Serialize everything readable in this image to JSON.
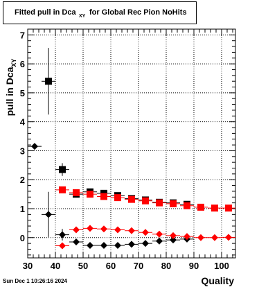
{
  "title": {
    "main": "Fitted pull in Dca",
    "subscript": "XY",
    "tail": "for Global Rec Pion NoHits"
  },
  "timestamp": "Sun Dec  1 10:26:16 2024",
  "chart_data": {
    "type": "scatter",
    "xlabel": "Quality",
    "ylabel": "pull in Dca",
    "ylabel_subscript": "XY",
    "xlim": [
      30,
      105
    ],
    "ylim": [
      -0.7,
      7.2
    ],
    "xticks": [
      30,
      40,
      50,
      60,
      70,
      80,
      90,
      100
    ],
    "yticks": [
      0,
      1,
      2,
      3,
      4,
      5,
      6,
      7
    ],
    "grid": true,
    "series": [
      {
        "color": "#000000",
        "marker": "square",
        "points": [
          {
            "x": 37.5,
            "y": 5.4,
            "yerr": 1.15
          },
          {
            "x": 42.5,
            "y": 2.35,
            "yerr": 0.22
          },
          {
            "x": 47.5,
            "y": 1.5,
            "yerr": 0.05
          },
          {
            "x": 52.5,
            "y": 1.58,
            "yerr": 0.04
          },
          {
            "x": 57.5,
            "y": 1.53,
            "yerr": 0.04
          },
          {
            "x": 62.5,
            "y": 1.45,
            "yerr": 0.04
          },
          {
            "x": 67.5,
            "y": 1.35,
            "yerr": 0.04
          },
          {
            "x": 72.5,
            "y": 1.3,
            "yerr": 0.04
          },
          {
            "x": 77.5,
            "y": 1.22,
            "yerr": 0.04
          },
          {
            "x": 82.5,
            "y": 1.2,
            "yerr": 0.04
          },
          {
            "x": 87.5,
            "y": 1.15,
            "yerr": 0.04
          }
        ]
      },
      {
        "color": "#ff0000",
        "marker": "square",
        "points": [
          {
            "x": 42.5,
            "y": 1.65,
            "yerr": 0.08
          },
          {
            "x": 47.5,
            "y": 1.55,
            "yerr": 0.05
          },
          {
            "x": 52.5,
            "y": 1.5,
            "yerr": 0.04
          },
          {
            "x": 57.5,
            "y": 1.42,
            "yerr": 0.04
          },
          {
            "x": 62.5,
            "y": 1.38,
            "yerr": 0.04
          },
          {
            "x": 67.5,
            "y": 1.32,
            "yerr": 0.04
          },
          {
            "x": 72.5,
            "y": 1.27,
            "yerr": 0.04
          },
          {
            "x": 77.5,
            "y": 1.2,
            "yerr": 0.04
          },
          {
            "x": 82.5,
            "y": 1.17,
            "yerr": 0.04
          },
          {
            "x": 87.5,
            "y": 1.1,
            "yerr": 0.04
          },
          {
            "x": 92.5,
            "y": 1.05,
            "yerr": 0.03
          },
          {
            "x": 97.5,
            "y": 1.02,
            "yerr": 0.03
          },
          {
            "x": 102.5,
            "y": 1.02,
            "yerr": 0.03
          }
        ]
      },
      {
        "color": "#000000",
        "marker": "diamond",
        "points": [
          {
            "x": 32.5,
            "y": 3.15,
            "yerr": 0.05
          },
          {
            "x": 37.5,
            "y": 0.8,
            "yerr": 0.78
          },
          {
            "x": 42.5,
            "y": 0.1,
            "yerr": 0.2
          },
          {
            "x": 47.5,
            "y": -0.15,
            "yerr": 0.06
          },
          {
            "x": 52.5,
            "y": -0.27,
            "yerr": 0.04
          },
          {
            "x": 57.5,
            "y": -0.27,
            "yerr": 0.04
          },
          {
            "x": 62.5,
            "y": -0.27,
            "yerr": 0.04
          },
          {
            "x": 67.5,
            "y": -0.23,
            "yerr": 0.04
          },
          {
            "x": 72.5,
            "y": -0.2,
            "yerr": 0.04
          },
          {
            "x": 77.5,
            "y": -0.12,
            "yerr": 0.04
          },
          {
            "x": 82.5,
            "y": -0.08,
            "yerr": 0.04
          },
          {
            "x": 87.5,
            "y": -0.05,
            "yerr": 0.04
          }
        ]
      },
      {
        "color": "#ff0000",
        "marker": "diamond",
        "points": [
          {
            "x": 42.5,
            "y": -0.28,
            "yerr": 0.06
          },
          {
            "x": 47.5,
            "y": 0.27,
            "yerr": 0.04
          },
          {
            "x": 52.5,
            "y": 0.32,
            "yerr": 0.04
          },
          {
            "x": 57.5,
            "y": 0.3,
            "yerr": 0.04
          },
          {
            "x": 62.5,
            "y": 0.27,
            "yerr": 0.04
          },
          {
            "x": 67.5,
            "y": 0.24,
            "yerr": 0.04
          },
          {
            "x": 72.5,
            "y": 0.18,
            "yerr": 0.04
          },
          {
            "x": 77.5,
            "y": 0.12,
            "yerr": 0.04
          },
          {
            "x": 82.5,
            "y": 0.07,
            "yerr": 0.04
          },
          {
            "x": 87.5,
            "y": 0.04,
            "yerr": 0.03
          },
          {
            "x": 92.5,
            "y": 0.0,
            "yerr": 0.03
          },
          {
            "x": 97.5,
            "y": 0.0,
            "yerr": 0.03
          },
          {
            "x": 102.5,
            "y": 0.01,
            "yerr": 0.03
          }
        ]
      }
    ]
  }
}
